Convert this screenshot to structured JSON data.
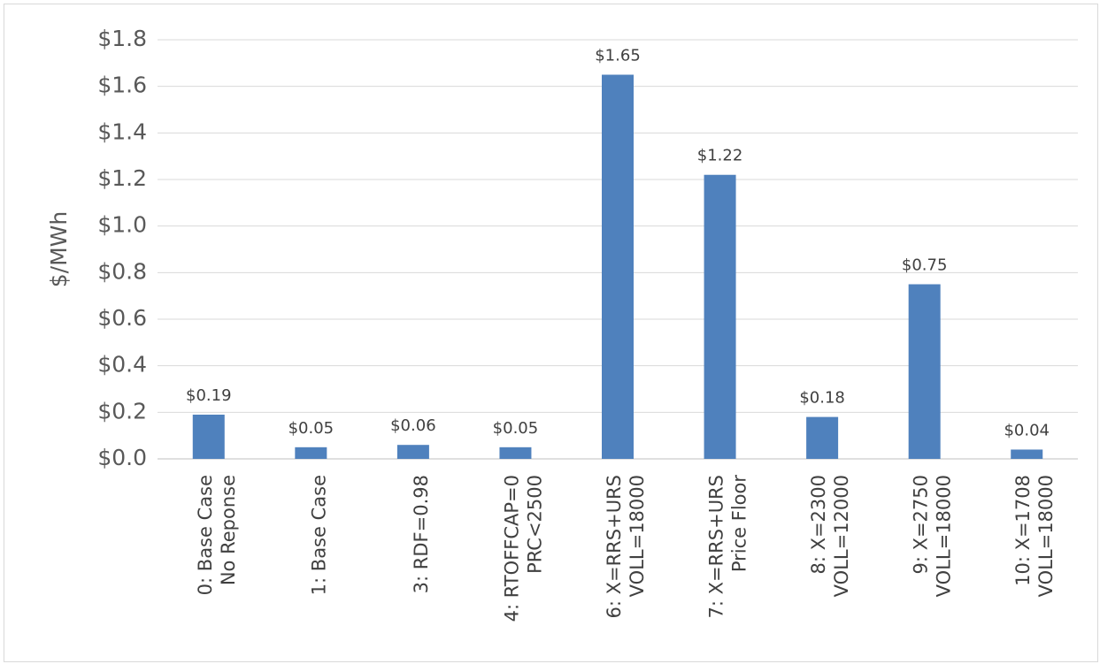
{
  "chart_data": {
    "type": "bar",
    "title": "",
    "xlabel": "",
    "ylabel": "$/MWh",
    "ylim": [
      0,
      1.8
    ],
    "ytick_step": 0.2,
    "ytick_labels": [
      "$0.0",
      "$0.2",
      "$0.4",
      "$0.6",
      "$0.8",
      "$1.0",
      "$1.2",
      "$1.4",
      "$1.6",
      "$1.8"
    ],
    "grid": true,
    "legend": "none",
    "bar_color": "#4f81bd",
    "categories": [
      [
        "0: Base Case",
        "No Reponse"
      ],
      [
        "1: Base Case"
      ],
      [
        "3: RDF=0.98"
      ],
      [
        "4: RTOFFCAP=0",
        "PRC<2500"
      ],
      [
        "6: X=RRS+URS",
        "VOLL=18000"
      ],
      [
        "7: X=RRS+URS",
        "Price Floor"
      ],
      [
        "8: X=2300",
        "VOLL=12000"
      ],
      [
        "9: X=2750",
        "VOLL=18000"
      ],
      [
        "10: X=1708",
        "VOLL=18000"
      ]
    ],
    "values": [
      0.19,
      0.05,
      0.06,
      0.05,
      1.65,
      1.22,
      0.18,
      0.75,
      0.04
    ],
    "data_labels": [
      "$0.19",
      "$0.05",
      "$0.06",
      "$0.05",
      "$1.65",
      "$1.22",
      "$0.18",
      "$0.75",
      "$0.04"
    ]
  }
}
